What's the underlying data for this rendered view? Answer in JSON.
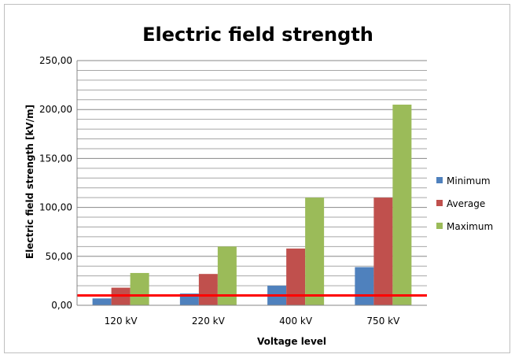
{
  "chart_data": {
    "type": "bar",
    "title": "Electric field strength",
    "xlabel": "Voltage level",
    "ylabel": "Electric field strength [kV/m]",
    "categories": [
      "120 kV",
      "220 kV",
      "400 kV",
      "750 kV"
    ],
    "ylim": [
      0,
      250
    ],
    "yticks": [
      "0,00",
      "50,00",
      "100,00",
      "150,00",
      "200,00",
      "250,00"
    ],
    "series": [
      {
        "name": "Minimum",
        "color": "#4f81bd",
        "values": [
          7,
          12,
          20,
          39
        ]
      },
      {
        "name": "Average",
        "color": "#c0504d",
        "values": [
          18,
          32,
          58,
          110
        ]
      },
      {
        "name": "Maximum",
        "color": "#9bbb59",
        "values": [
          33,
          60,
          110,
          205
        ]
      }
    ],
    "reference_line": {
      "value": 10,
      "color": "#ff0000"
    },
    "grid": true,
    "legend": "right"
  }
}
